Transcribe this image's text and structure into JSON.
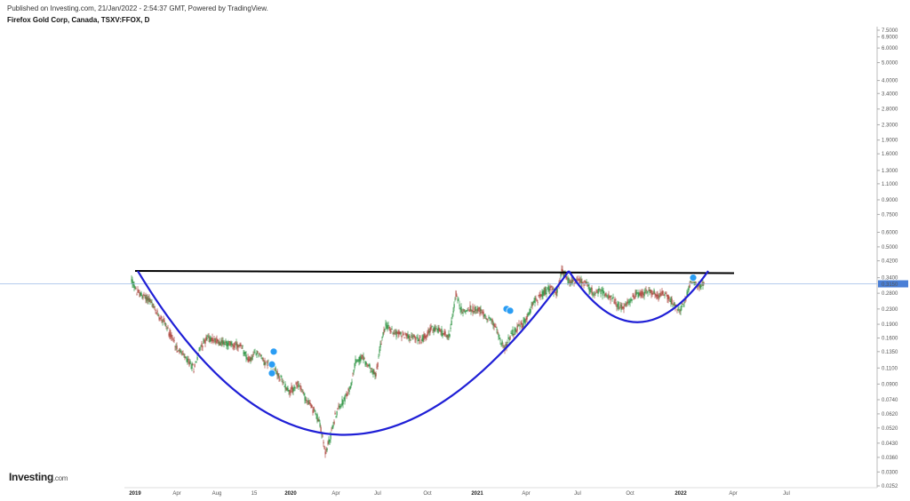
{
  "header": {
    "published": "Published on Investing.com, 21/Jan/2022 - 2:54:37 GMT, Powered by TradingView.",
    "symbol": "Firefox Gold Corp, Canada, TSXV:FFOX, D"
  },
  "logo": {
    "brand": "Investing",
    "suffix": ".com"
  },
  "colors": {
    "up": "#3a9a4e",
    "down": "#b2524a",
    "cup": "#1f1fd6",
    "resistance": "#000000",
    "price_line": "#9dbbe8",
    "price_badge": "#4a7fd6"
  },
  "chart_data": {
    "type": "candlestick",
    "scale": "log",
    "current_price_label": "0.3150",
    "y_ticks": [
      "7.5000",
      "6.9000",
      "6.0000",
      "5.0000",
      "4.0000",
      "3.4000",
      "2.8000",
      "2.3000",
      "1.9000",
      "1.6000",
      "1.3000",
      "1.1000",
      "0.9000",
      "0.7500",
      "0.6000",
      "0.5000",
      "0.4200",
      "0.3400",
      "0.2800",
      "0.2300",
      "0.1900",
      "0.1600",
      "0.1350",
      "0.1100",
      "0.0900",
      "0.0740",
      "0.0620",
      "0.0520",
      "0.0430",
      "0.0360",
      "0.0300",
      "0.0252"
    ],
    "x_ticks": [
      {
        "label": "2019",
        "bold": true
      },
      {
        "label": "Apr",
        "bold": false
      },
      {
        "label": "Aug",
        "bold": false
      },
      {
        "label": "15",
        "bold": false
      },
      {
        "label": "2020",
        "bold": true
      },
      {
        "label": "Apr",
        "bold": false
      },
      {
        "label": "Jul",
        "bold": false
      },
      {
        "label": "Oct",
        "bold": false
      },
      {
        "label": "2021",
        "bold": true
      },
      {
        "label": "Apr",
        "bold": false
      },
      {
        "label": "Jul",
        "bold": false
      },
      {
        "label": "Oct",
        "bold": false
      },
      {
        "label": "2022",
        "bold": true
      },
      {
        "label": "Apr",
        "bold": false
      },
      {
        "label": "Jul",
        "bold": false
      }
    ],
    "price_path": [
      [
        0,
        0.33
      ],
      [
        5,
        0.29
      ],
      [
        12,
        0.27
      ],
      [
        20,
        0.26
      ],
      [
        28,
        0.22
      ],
      [
        36,
        0.2
      ],
      [
        44,
        0.165
      ],
      [
        52,
        0.14
      ],
      [
        60,
        0.125
      ],
      [
        70,
        0.11
      ],
      [
        78,
        0.145
      ],
      [
        85,
        0.16
      ],
      [
        95,
        0.155
      ],
      [
        105,
        0.15
      ],
      [
        115,
        0.148
      ],
      [
        125,
        0.14
      ],
      [
        132,
        0.12
      ],
      [
        142,
        0.135
      ],
      [
        150,
        0.118
      ],
      [
        160,
        0.11
      ],
      [
        170,
        0.092
      ],
      [
        178,
        0.082
      ],
      [
        188,
        0.09
      ],
      [
        196,
        0.075
      ],
      [
        205,
        0.065
      ],
      [
        212,
        0.055
      ],
      [
        218,
        0.038
      ],
      [
        223,
        0.045
      ],
      [
        229,
        0.06
      ],
      [
        235,
        0.07
      ],
      [
        240,
        0.075
      ],
      [
        246,
        0.085
      ],
      [
        252,
        0.12
      ],
      [
        260,
        0.125
      ],
      [
        268,
        0.11
      ],
      [
        275,
        0.1
      ],
      [
        280,
        0.145
      ],
      [
        286,
        0.19
      ],
      [
        292,
        0.175
      ],
      [
        300,
        0.17
      ],
      [
        310,
        0.165
      ],
      [
        318,
        0.16
      ],
      [
        326,
        0.155
      ],
      [
        334,
        0.175
      ],
      [
        342,
        0.18
      ],
      [
        350,
        0.17
      ],
      [
        358,
        0.165
      ],
      [
        365,
        0.28
      ],
      [
        372,
        0.22
      ],
      [
        380,
        0.23
      ],
      [
        390,
        0.23
      ],
      [
        398,
        0.21
      ],
      [
        405,
        0.2
      ],
      [
        412,
        0.17
      ],
      [
        420,
        0.14
      ],
      [
        428,
        0.17
      ],
      [
        436,
        0.185
      ],
      [
        444,
        0.2
      ],
      [
        452,
        0.25
      ],
      [
        460,
        0.27
      ],
      [
        466,
        0.29
      ],
      [
        472,
        0.3
      ],
      [
        478,
        0.28
      ],
      [
        484,
        0.37
      ],
      [
        490,
        0.33
      ],
      [
        496,
        0.32
      ],
      [
        504,
        0.33
      ],
      [
        512,
        0.31
      ],
      [
        520,
        0.28
      ],
      [
        528,
        0.29
      ],
      [
        536,
        0.27
      ],
      [
        544,
        0.25
      ],
      [
        552,
        0.23
      ],
      [
        560,
        0.25
      ],
      [
        568,
        0.28
      ],
      [
        576,
        0.28
      ],
      [
        584,
        0.29
      ],
      [
        592,
        0.27
      ],
      [
        600,
        0.28
      ],
      [
        606,
        0.26
      ],
      [
        612,
        0.24
      ],
      [
        618,
        0.23
      ],
      [
        624,
        0.26
      ],
      [
        630,
        0.34
      ],
      [
        636,
        0.31
      ],
      [
        644,
        0.31
      ]
    ],
    "cup_handle": {
      "cup_start_price": 0.37,
      "cup_bottom_price": 0.038,
      "cup_end_price": 0.37,
      "handle_bottom_price": 0.2,
      "handle_end_price": 0.37
    },
    "resistance_line": {
      "start_price": 0.37,
      "end_price": 0.36
    },
    "markers": [
      {
        "candle": 160,
        "price": 0.135
      },
      {
        "candle": 158,
        "price": 0.115
      },
      {
        "candle": 158,
        "price": 0.103
      },
      {
        "candle": 422,
        "price": 0.23
      },
      {
        "candle": 426,
        "price": 0.225
      },
      {
        "candle": 632,
        "price": 0.34
      }
    ]
  }
}
